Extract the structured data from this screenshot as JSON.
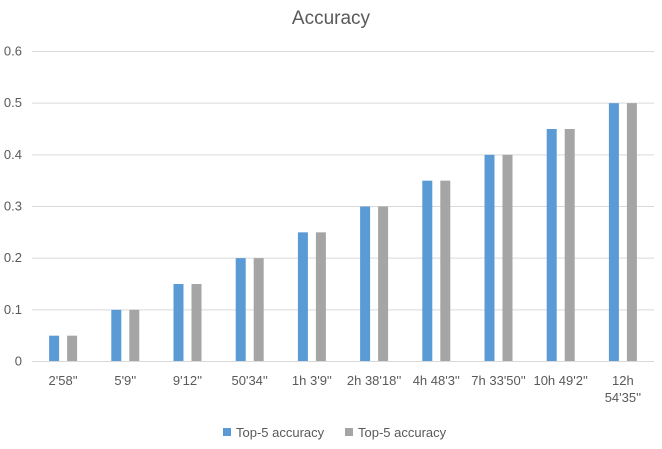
{
  "chart_data": {
    "type": "bar",
    "title": "Accuracy",
    "categories": [
      "2'58''",
      "5'9''",
      "9'12''",
      "50'34''",
      "1h 3'9''",
      "2h 38'18''",
      "4h 48'3''",
      "7h 33'50''",
      "10h 49'2''",
      "12h 54'35''"
    ],
    "series": [
      {
        "name": "Top-5 accuracy",
        "color": "#5b9bd5",
        "values": [
          0.05,
          0.1,
          0.15,
          0.2,
          0.25,
          0.3,
          0.35,
          0.4,
          0.45,
          0.5
        ]
      },
      {
        "name": "Top-5 accuracy",
        "color": "#a5a5a5",
        "values": [
          0.05,
          0.1,
          0.15,
          0.2,
          0.25,
          0.3,
          0.35,
          0.4,
          0.45,
          0.5
        ]
      }
    ],
    "ylim": [
      0,
      0.6
    ],
    "yticks": [
      "0",
      "0.1",
      "0.2",
      "0.3",
      "0.4",
      "0.5",
      "0.6"
    ],
    "grid": true,
    "legend_position": "bottom"
  }
}
